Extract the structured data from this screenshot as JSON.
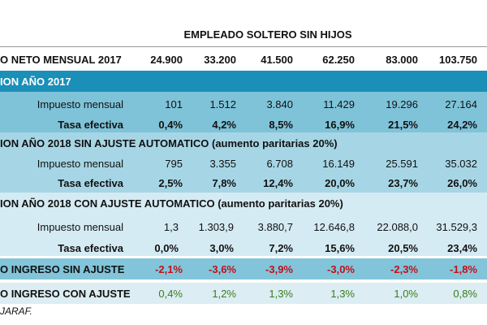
{
  "title": "EMPLEADO SOLTERO SIN HIJOS",
  "header": {
    "label": "O NETO MENSUAL 2017",
    "values": [
      "24.900",
      "33.200",
      "41.500",
      "62.250",
      "83.000",
      "103.750"
    ]
  },
  "section_2017": {
    "title": "ION AÑO 2017",
    "impuesto_label": "Impuesto mensual",
    "impuesto": [
      "101",
      "1.512",
      "3.840",
      "11.429",
      "19.296",
      "27.164"
    ],
    "tasa_label": "Tasa efectiva",
    "tasa": [
      "0,4%",
      "4,2%",
      "8,5%",
      "16,9%",
      "21,5%",
      "24,2%"
    ]
  },
  "section_2018_sin": {
    "title": "ION AÑO 2018 SIN AJUSTE AUTOMATICO (aumento paritarias 20%)",
    "impuesto_label": "Impuesto mensual",
    "impuesto": [
      "795",
      "3.355",
      "6.708",
      "16.149",
      "25.591",
      "35.032"
    ],
    "tasa_label": "Tasa efectiva",
    "tasa": [
      "2,5%",
      "7,8%",
      "12,4%",
      "20,0%",
      "23,7%",
      "26,0%"
    ]
  },
  "section_2018_con": {
    "title": "ION AÑO 2018 CON AJUSTE AUTOMATICO (aumento paritarias 20%)",
    "impuesto_label": "Impuesto mensual",
    "impuesto": [
      "1,3",
      "1.303,9",
      "3.880,7",
      "12.646,8",
      "22.088,0",
      "31.529,3"
    ],
    "tasa_label": "Tasa efectiva",
    "tasa": [
      "0,0%",
      "3,0%",
      "7,2%",
      "15,6%",
      "20,5%",
      "23,4%"
    ]
  },
  "variacion_sin": {
    "label": "O INGRESO SIN AJUSTE",
    "values": [
      "-2,1%",
      "-3,6%",
      "-3,9%",
      "-3,0%",
      "-2,3%",
      "-1,8%"
    ]
  },
  "variacion_con": {
    "label": "O INGRESO CON AJUSTE",
    "values": [
      "0,4%",
      "1,2%",
      "1,3%",
      "1,3%",
      "1,0%",
      "0,8%"
    ]
  },
  "source": "JARAF.",
  "colors": {
    "section_dark": "#1a8fb8",
    "section_mid": "#7fc3d9",
    "section_light": "#a6d6e5",
    "section_lighter": "#d5ebf3",
    "negative": "#c0101a",
    "positive": "#3a7d1c"
  }
}
